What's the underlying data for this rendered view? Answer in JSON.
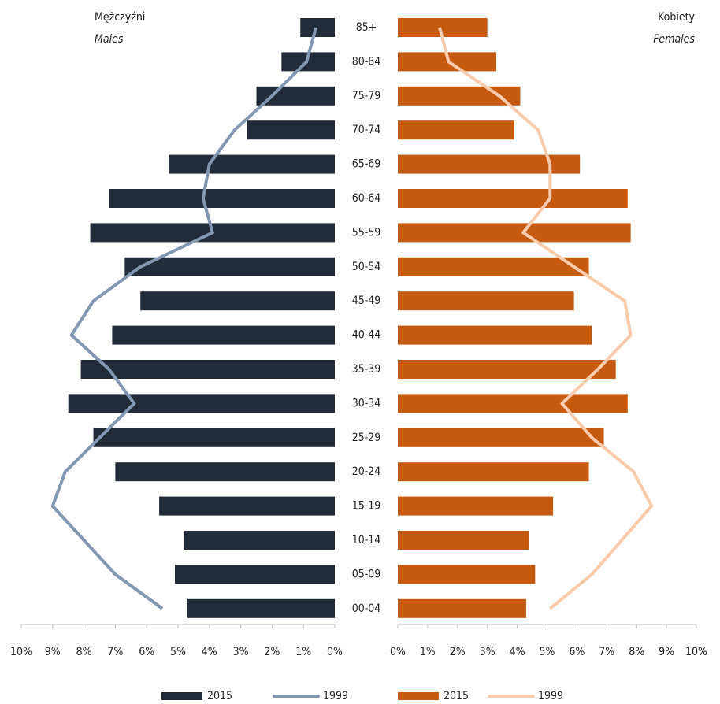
{
  "chart_data": {
    "type": "pyramid",
    "categories": [
      "85+",
      "80-84",
      "75-79",
      "70-74",
      "65-69",
      "60-64",
      "55-59",
      "50-54",
      "45-49",
      "40-44",
      "35-39",
      "30-34",
      "25-29",
      "20-24",
      "15-19",
      "10-14",
      "05-09",
      "00-04"
    ],
    "panels": [
      {
        "title": "Mężczyźni",
        "subtitle": "Males",
        "reversed": true,
        "xlim": [
          0,
          10
        ],
        "xticks": [
          {
            "value": 0,
            "label": "0%"
          },
          {
            "value": 1,
            "label": "1%"
          },
          {
            "value": 2,
            "label": "2%"
          },
          {
            "value": 3,
            "label": "3%"
          },
          {
            "value": 4,
            "label": "4%"
          },
          {
            "value": 5,
            "label": "5%"
          },
          {
            "value": 6,
            "label": "6%"
          },
          {
            "value": 7,
            "label": "7%"
          },
          {
            "value": 8,
            "label": "8%"
          },
          {
            "value": 9,
            "label": "9%"
          },
          {
            "value": 10,
            "label": "10%"
          }
        ],
        "series": [
          {
            "name": "2015",
            "kind": "bar",
            "color": "#222b38",
            "values": [
              1.1,
              1.7,
              2.5,
              2.8,
              5.3,
              7.2,
              7.8,
              6.7,
              6.2,
              7.1,
              8.1,
              8.5,
              7.7,
              7.0,
              5.6,
              4.8,
              5.1,
              4.7
            ]
          },
          {
            "name": "1999",
            "kind": "line",
            "color": "#8497b0",
            "values": [
              0.6,
              0.9,
              2.0,
              3.2,
              4.0,
              4.2,
              3.9,
              6.2,
              7.7,
              8.4,
              7.2,
              6.4,
              7.5,
              8.6,
              9.0,
              8.0,
              7.0,
              5.5
            ]
          }
        ]
      },
      {
        "title": "Kobiety",
        "subtitle": "Females",
        "reversed": false,
        "xlim": [
          0,
          10
        ],
        "xticks": [
          {
            "value": 0,
            "label": "0%"
          },
          {
            "value": 1,
            "label": "1%"
          },
          {
            "value": 2,
            "label": "2%"
          },
          {
            "value": 3,
            "label": "3%"
          },
          {
            "value": 4,
            "label": "4%"
          },
          {
            "value": 5,
            "label": "5%"
          },
          {
            "value": 6,
            "label": "6%"
          },
          {
            "value": 7,
            "label": "7%"
          },
          {
            "value": 8,
            "label": "8%"
          },
          {
            "value": 9,
            "label": "9%"
          },
          {
            "value": 10,
            "label": "10%"
          }
        ],
        "series": [
          {
            "name": "2015",
            "kind": "bar",
            "color": "#c55a11",
            "values": [
              3.0,
              3.3,
              4.1,
              3.9,
              6.1,
              7.7,
              7.8,
              6.4,
              5.9,
              6.5,
              7.3,
              7.7,
              6.9,
              6.4,
              5.2,
              4.4,
              4.6,
              4.3
            ]
          },
          {
            "name": "1999",
            "kind": "line",
            "color": "#f8cbad",
            "values": [
              1.4,
              1.7,
              3.4,
              4.7,
              5.1,
              5.1,
              4.2,
              5.9,
              7.6,
              7.8,
              6.7,
              5.5,
              6.5,
              7.9,
              8.5,
              7.5,
              6.5,
              5.1
            ]
          }
        ]
      }
    ]
  }
}
